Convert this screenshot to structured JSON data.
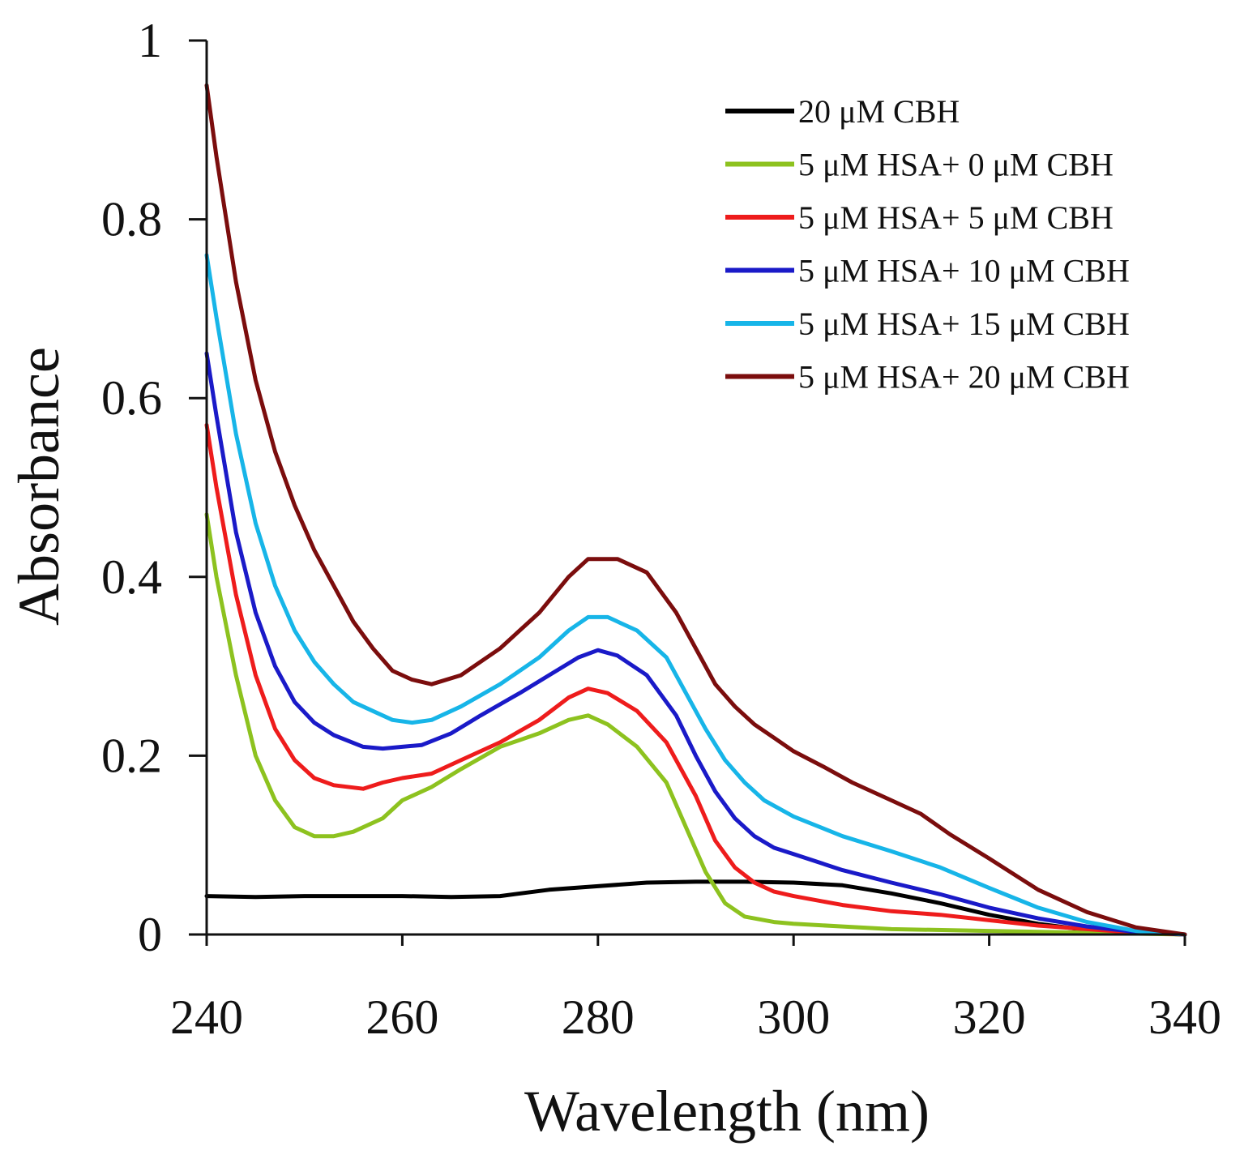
{
  "chart_data": {
    "type": "line",
    "title": "",
    "xlabel": "Wavelength (nm)",
    "ylabel": "Absorbance",
    "xlim": [
      240,
      340
    ],
    "ylim": [
      0,
      1
    ],
    "xticks": [
      240,
      260,
      280,
      300,
      320,
      340
    ],
    "yticks": [
      0,
      0.2,
      0.4,
      0.6,
      0.8,
      1
    ],
    "ytick_labels": [
      "0",
      "0.2",
      "0.4",
      "0.6",
      "0.8",
      "1"
    ],
    "grid": false,
    "legend_position": "top-right",
    "series": [
      {
        "name": "20 μM CBH",
        "color": "#000000",
        "points": [
          [
            240,
            0.043
          ],
          [
            245,
            0.042
          ],
          [
            250,
            0.043
          ],
          [
            255,
            0.043
          ],
          [
            260,
            0.043
          ],
          [
            265,
            0.042
          ],
          [
            270,
            0.043
          ],
          [
            275,
            0.05
          ],
          [
            280,
            0.054
          ],
          [
            285,
            0.058
          ],
          [
            290,
            0.059
          ],
          [
            295,
            0.059
          ],
          [
            300,
            0.058
          ],
          [
            305,
            0.055
          ],
          [
            310,
            0.046
          ],
          [
            315,
            0.035
          ],
          [
            320,
            0.022
          ],
          [
            325,
            0.012
          ],
          [
            330,
            0.005
          ],
          [
            335,
            0.002
          ],
          [
            340,
            0.0
          ]
        ]
      },
      {
        "name": "5 μM HSA+ 0 μM CBH",
        "color": "#8dc21f",
        "points": [
          [
            240,
            0.47
          ],
          [
            241,
            0.4
          ],
          [
            243,
            0.29
          ],
          [
            245,
            0.2
          ],
          [
            247,
            0.15
          ],
          [
            249,
            0.12
          ],
          [
            251,
            0.11
          ],
          [
            253,
            0.11
          ],
          [
            255,
            0.115
          ],
          [
            258,
            0.13
          ],
          [
            260,
            0.15
          ],
          [
            263,
            0.165
          ],
          [
            266,
            0.185
          ],
          [
            270,
            0.21
          ],
          [
            274,
            0.225
          ],
          [
            277,
            0.24
          ],
          [
            279,
            0.245
          ],
          [
            281,
            0.235
          ],
          [
            284,
            0.21
          ],
          [
            287,
            0.17
          ],
          [
            289,
            0.12
          ],
          [
            291,
            0.07
          ],
          [
            293,
            0.035
          ],
          [
            295,
            0.02
          ],
          [
            298,
            0.014
          ],
          [
            300,
            0.012
          ],
          [
            305,
            0.009
          ],
          [
            310,
            0.006
          ],
          [
            320,
            0.004
          ],
          [
            330,
            0.002
          ],
          [
            340,
            0.0
          ]
        ]
      },
      {
        "name": "5 μM HSA+ 5 μM CBH",
        "color": "#ee1c1c",
        "points": [
          [
            240,
            0.57
          ],
          [
            241,
            0.5
          ],
          [
            243,
            0.38
          ],
          [
            245,
            0.29
          ],
          [
            247,
            0.23
          ],
          [
            249,
            0.195
          ],
          [
            251,
            0.175
          ],
          [
            253,
            0.167
          ],
          [
            256,
            0.163
          ],
          [
            258,
            0.17
          ],
          [
            260,
            0.175
          ],
          [
            263,
            0.18
          ],
          [
            266,
            0.195
          ],
          [
            270,
            0.215
          ],
          [
            274,
            0.24
          ],
          [
            277,
            0.265
          ],
          [
            279,
            0.275
          ],
          [
            281,
            0.27
          ],
          [
            284,
            0.25
          ],
          [
            287,
            0.215
          ],
          [
            290,
            0.155
          ],
          [
            292,
            0.105
          ],
          [
            294,
            0.075
          ],
          [
            296,
            0.058
          ],
          [
            298,
            0.048
          ],
          [
            300,
            0.043
          ],
          [
            305,
            0.033
          ],
          [
            310,
            0.026
          ],
          [
            315,
            0.022
          ],
          [
            320,
            0.016
          ],
          [
            325,
            0.01
          ],
          [
            330,
            0.006
          ],
          [
            335,
            0.002
          ],
          [
            340,
            0.0
          ]
        ]
      },
      {
        "name": "5 μM HSA+ 10 μM CBH",
        "color": "#1a1ac8",
        "points": [
          [
            240,
            0.65
          ],
          [
            241,
            0.58
          ],
          [
            243,
            0.45
          ],
          [
            245,
            0.36
          ],
          [
            247,
            0.3
          ],
          [
            249,
            0.26
          ],
          [
            251,
            0.237
          ],
          [
            253,
            0.223
          ],
          [
            256,
            0.21
          ],
          [
            258,
            0.208
          ],
          [
            260,
            0.21
          ],
          [
            262,
            0.212
          ],
          [
            265,
            0.225
          ],
          [
            268,
            0.245
          ],
          [
            272,
            0.27
          ],
          [
            275,
            0.29
          ],
          [
            278,
            0.31
          ],
          [
            280,
            0.318
          ],
          [
            282,
            0.312
          ],
          [
            285,
            0.29
          ],
          [
            288,
            0.245
          ],
          [
            290,
            0.2
          ],
          [
            292,
            0.16
          ],
          [
            294,
            0.13
          ],
          [
            296,
            0.11
          ],
          [
            298,
            0.097
          ],
          [
            300,
            0.09
          ],
          [
            305,
            0.072
          ],
          [
            310,
            0.058
          ],
          [
            315,
            0.045
          ],
          [
            320,
            0.03
          ],
          [
            325,
            0.018
          ],
          [
            330,
            0.009
          ],
          [
            335,
            0.003
          ],
          [
            340,
            0.0
          ]
        ]
      },
      {
        "name": "5 μM HSA+ 15 μM CBH",
        "color": "#17b5e8",
        "points": [
          [
            240,
            0.76
          ],
          [
            241,
            0.69
          ],
          [
            243,
            0.56
          ],
          [
            245,
            0.46
          ],
          [
            247,
            0.39
          ],
          [
            249,
            0.34
          ],
          [
            251,
            0.305
          ],
          [
            253,
            0.28
          ],
          [
            255,
            0.26
          ],
          [
            257,
            0.25
          ],
          [
            259,
            0.24
          ],
          [
            261,
            0.237
          ],
          [
            263,
            0.24
          ],
          [
            266,
            0.255
          ],
          [
            270,
            0.28
          ],
          [
            274,
            0.31
          ],
          [
            277,
            0.34
          ],
          [
            279,
            0.355
          ],
          [
            281,
            0.355
          ],
          [
            284,
            0.34
          ],
          [
            287,
            0.31
          ],
          [
            289,
            0.27
          ],
          [
            291,
            0.23
          ],
          [
            293,
            0.195
          ],
          [
            295,
            0.17
          ],
          [
            297,
            0.15
          ],
          [
            300,
            0.132
          ],
          [
            305,
            0.11
          ],
          [
            310,
            0.093
          ],
          [
            315,
            0.075
          ],
          [
            320,
            0.052
          ],
          [
            325,
            0.03
          ],
          [
            330,
            0.014
          ],
          [
            335,
            0.004
          ],
          [
            340,
            0.0
          ]
        ]
      },
      {
        "name": "5 μM HSA+ 20 μM CBH",
        "color": "#7b0d0d",
        "points": [
          [
            240,
            0.95
          ],
          [
            241,
            0.87
          ],
          [
            243,
            0.73
          ],
          [
            245,
            0.62
          ],
          [
            247,
            0.54
          ],
          [
            249,
            0.48
          ],
          [
            251,
            0.43
          ],
          [
            253,
            0.39
          ],
          [
            255,
            0.35
          ],
          [
            257,
            0.32
          ],
          [
            259,
            0.295
          ],
          [
            261,
            0.285
          ],
          [
            263,
            0.28
          ],
          [
            266,
            0.29
          ],
          [
            270,
            0.32
          ],
          [
            274,
            0.36
          ],
          [
            277,
            0.4
          ],
          [
            279,
            0.42
          ],
          [
            282,
            0.42
          ],
          [
            285,
            0.405
          ],
          [
            288,
            0.36
          ],
          [
            290,
            0.32
          ],
          [
            292,
            0.28
          ],
          [
            294,
            0.255
          ],
          [
            296,
            0.235
          ],
          [
            298,
            0.22
          ],
          [
            300,
            0.205
          ],
          [
            303,
            0.188
          ],
          [
            306,
            0.17
          ],
          [
            310,
            0.15
          ],
          [
            313,
            0.135
          ],
          [
            316,
            0.112
          ],
          [
            320,
            0.085
          ],
          [
            325,
            0.05
          ],
          [
            330,
            0.025
          ],
          [
            335,
            0.008
          ],
          [
            340,
            0.0
          ]
        ]
      }
    ]
  }
}
